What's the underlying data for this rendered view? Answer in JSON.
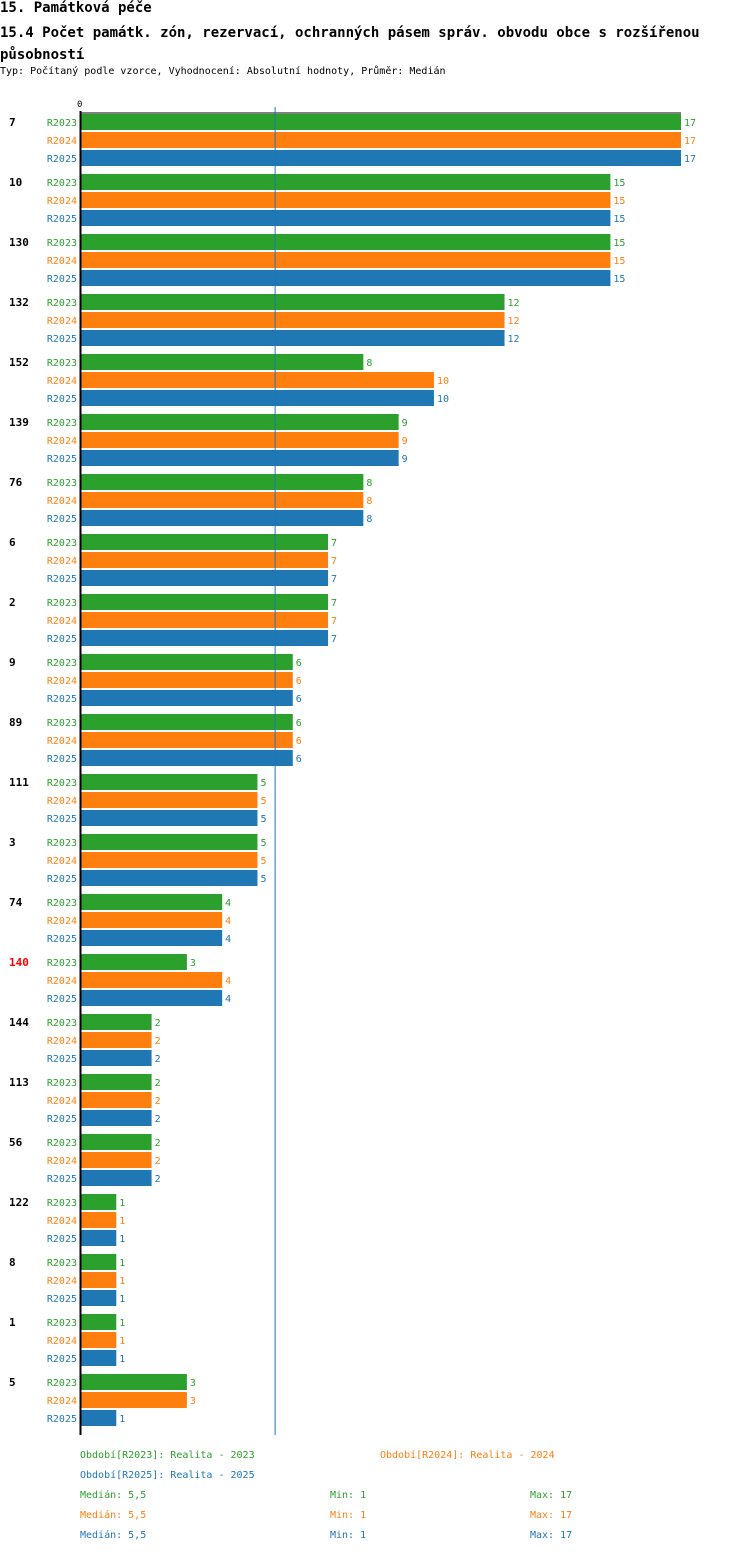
{
  "header": {
    "title": "15. Památková péče",
    "subtitle": "15.4 Počet památk. zón, rezervací, ochranných pásem správ. obvodu obce s rozšířenou působností",
    "meta": "Typ: Počítaný podle vzorce, Vyhodnocení: Absolutní hodnoty, Průměr: Medián"
  },
  "colors": {
    "R2023": "#2ca02c",
    "R2024": "#ff7f0e",
    "R2025": "#1f77b4",
    "highlight": "#ff0000",
    "median_line": "#1f77b4"
  },
  "chart_data": {
    "type": "bar",
    "orientation": "horizontal",
    "axis_zero_label": "0",
    "xlim": [
      0,
      17
    ],
    "median_marker": 5.5,
    "highlighted_category": "140",
    "categories": [
      "7",
      "10",
      "130",
      "132",
      "152",
      "139",
      "76",
      "6",
      "2",
      "9",
      "89",
      "111",
      "3",
      "74",
      "140",
      "144",
      "113",
      "56",
      "122",
      "8",
      "1",
      "5"
    ],
    "series": [
      {
        "name": "R2023",
        "values": [
          17,
          15,
          15,
          12,
          8,
          9,
          8,
          7,
          7,
          6,
          6,
          5,
          5,
          4,
          3,
          2,
          2,
          2,
          1,
          1,
          1,
          3
        ]
      },
      {
        "name": "R2024",
        "values": [
          17,
          15,
          15,
          12,
          10,
          9,
          8,
          7,
          7,
          6,
          6,
          5,
          5,
          4,
          4,
          2,
          2,
          2,
          1,
          1,
          1,
          3
        ]
      },
      {
        "name": "R2025",
        "values": [
          17,
          15,
          15,
          12,
          10,
          9,
          8,
          7,
          7,
          6,
          6,
          5,
          5,
          4,
          4,
          2,
          2,
          2,
          1,
          1,
          1,
          1
        ]
      }
    ]
  },
  "legend": {
    "r2023": "Období[R2023]: Realita - 2023",
    "r2024": "Období[R2024]: Realita - 2024",
    "r2025": "Období[R2025]: Realita - 2025"
  },
  "stats": [
    {
      "median": "Medián: 5,5",
      "min": "Min: 1",
      "max": "Max: 17"
    },
    {
      "median": "Medián: 5,5",
      "min": "Min: 1",
      "max": "Max: 17"
    },
    {
      "median": "Medián: 5,5",
      "min": "Min: 1",
      "max": "Max: 17"
    }
  ]
}
